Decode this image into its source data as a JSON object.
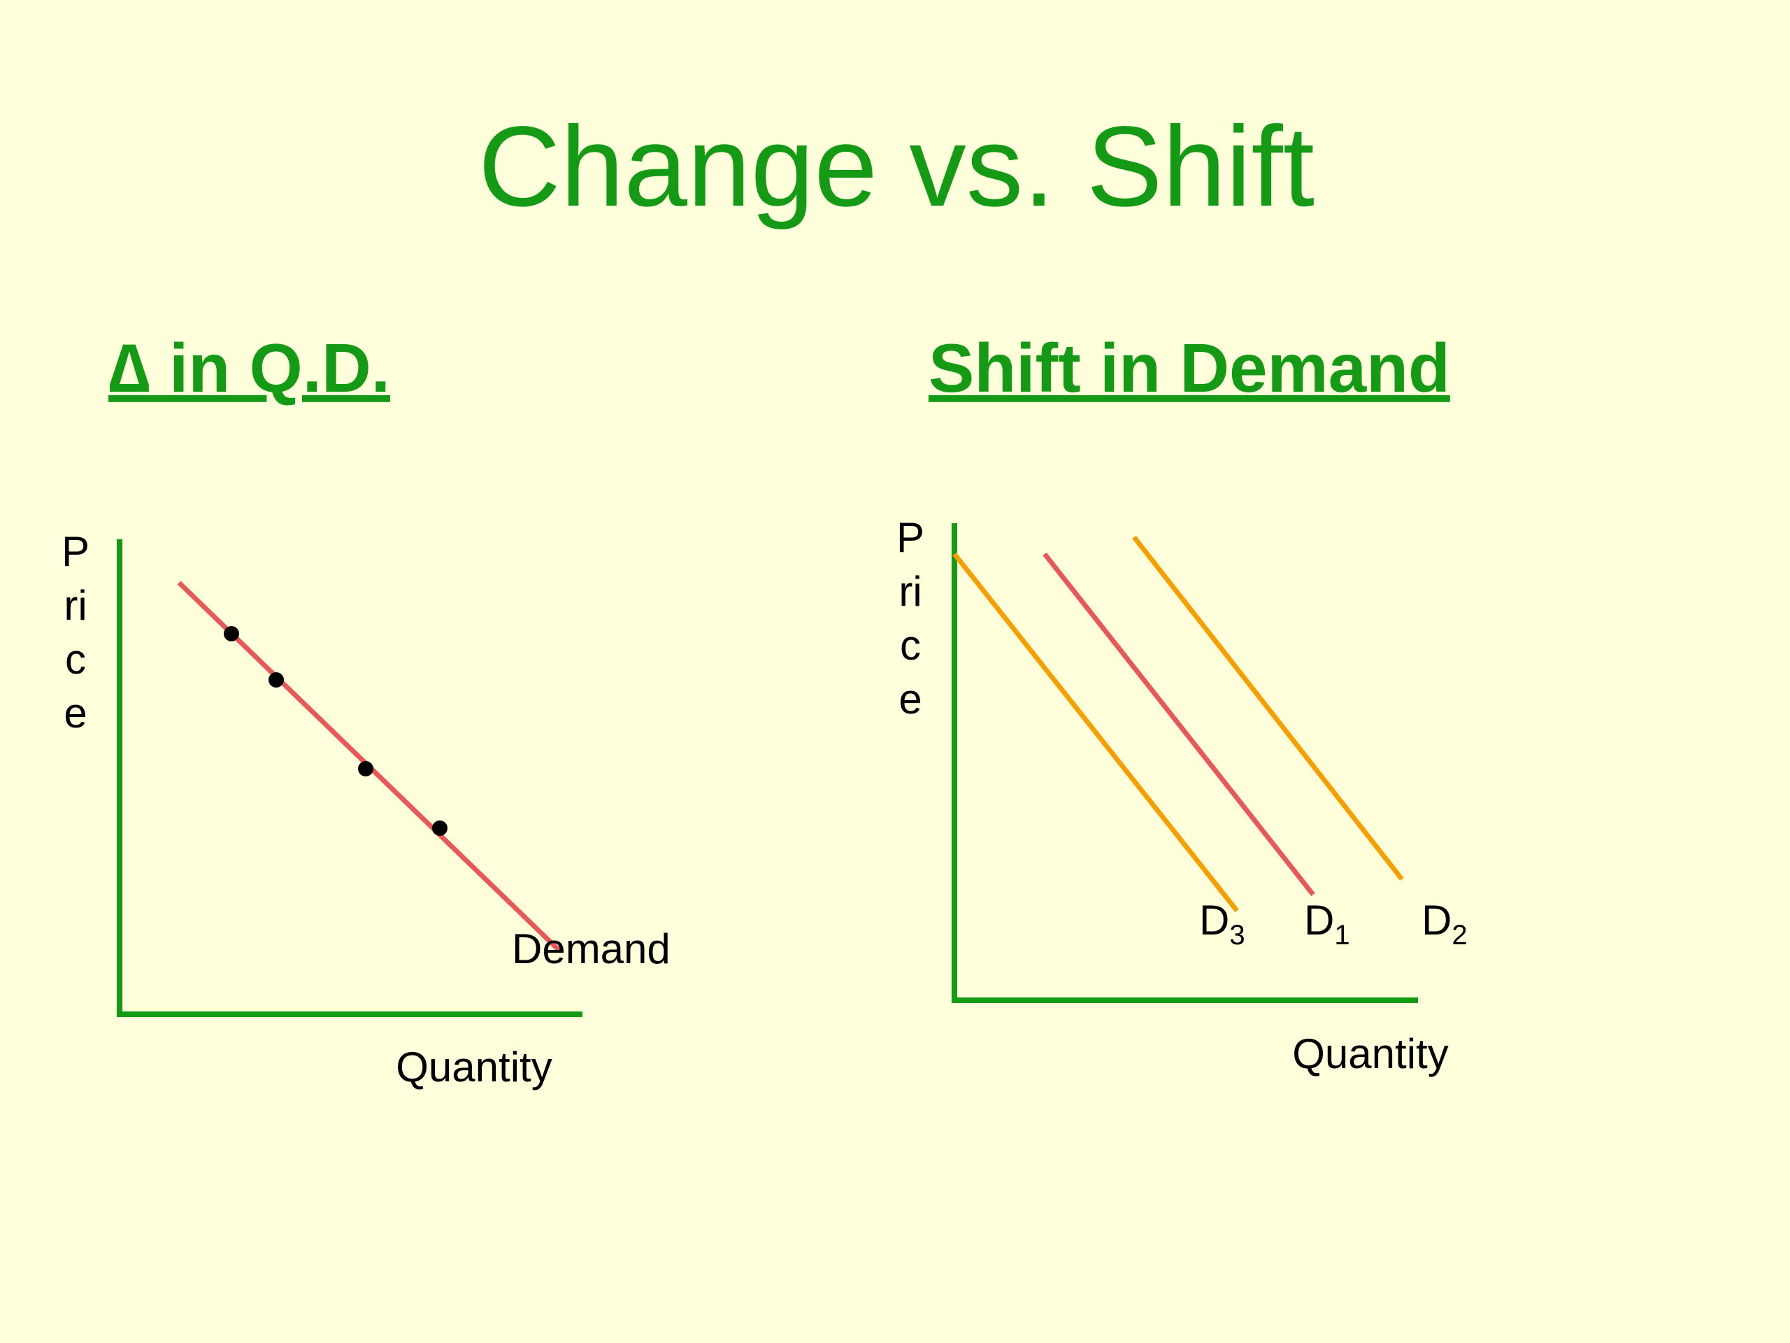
{
  "title": "Change vs. Shift",
  "left_panel": {
    "heading": "∆ in Q.D.",
    "y_axis_label": "Price",
    "x_axis_label": "Quantity",
    "curve_label": "Demand"
  },
  "right_panel": {
    "heading": "Shift in Demand",
    "y_axis_label": "Price",
    "x_axis_label": "Quantity",
    "curves": [
      {
        "label": "D",
        "subscript": "3"
      },
      {
        "label": "D",
        "subscript": "1"
      },
      {
        "label": "D",
        "subscript": "2"
      }
    ]
  }
}
